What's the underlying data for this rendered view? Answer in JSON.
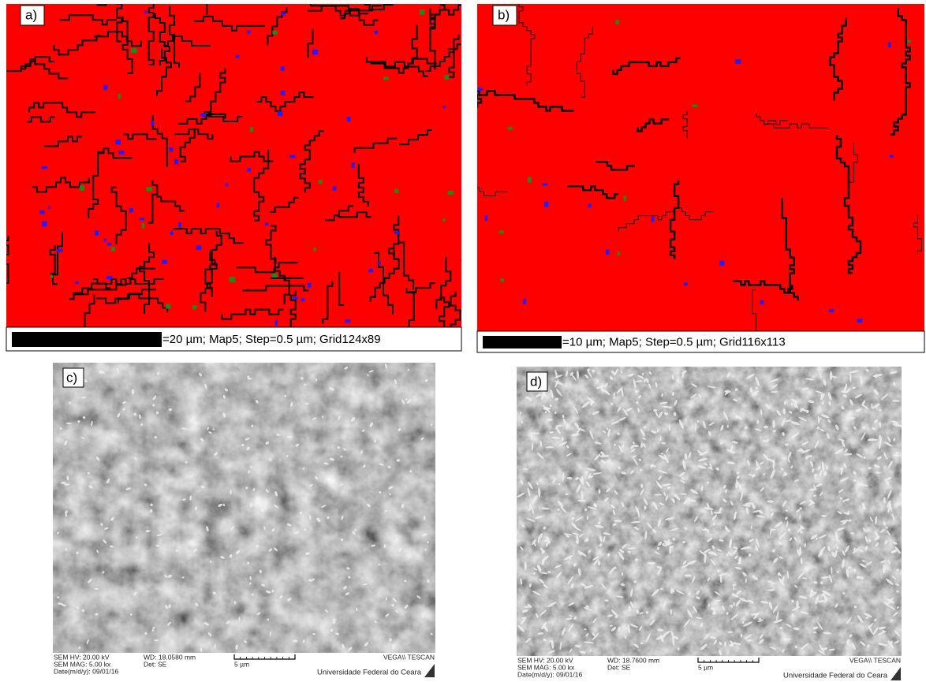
{
  "panels": [
    {
      "label": "a)",
      "caption": "=20 µm; Map5; Step=0.5 µm; Grid124x89"
    },
    {
      "label": "b)",
      "caption": "=10 µm; Map5; Step=0.5 µm; Grid116x113"
    },
    {
      "label": "c)",
      "info": {
        "hv": "SEM HV: 20.00 kV",
        "mag": "SEM MAG: 5.00 kx",
        "date": "Date(m/d/y): 09/01/16",
        "wd": "WD: 18.0580 mm",
        "det": "Det: SE",
        "scale": "5 µm",
        "brand": "VEGA\\\\ TESCAN",
        "institution": "Universidade Federal do Ceara"
      }
    },
    {
      "label": "d)",
      "info": {
        "hv": "SEM HV: 20.00 kV",
        "mag": "SEM MAG: 5.00 kx",
        "date": "Date(m/d/y): 09/01/16",
        "wd": "WD: 18.7600 mm",
        "det": "Det: SE",
        "scale": "5 µm",
        "brand": "VEGA\\\\ TESCAN",
        "institution": "Universidade Federal do Ceara"
      }
    }
  ]
}
